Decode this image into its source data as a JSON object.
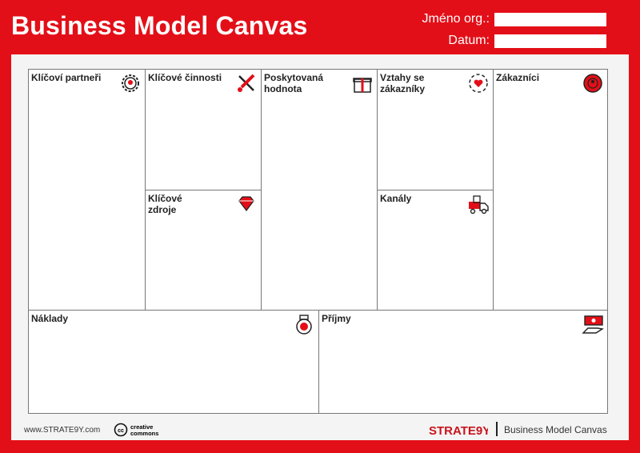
{
  "header": {
    "title": "Business Model Canvas",
    "org_label": "Jméno org.:",
    "date_label": "Datum:",
    "org_value": "",
    "date_value": ""
  },
  "blocks": {
    "partners": {
      "label": "Klíčoví partneři",
      "icon": "gear-partner-icon"
    },
    "activities": {
      "label": "Klíčové činnosti",
      "icon": "tools-icon"
    },
    "resources": {
      "label": "Klíčové zdroje",
      "icon": "diamond-icon"
    },
    "value": {
      "label": "Poskytovaná hodnota",
      "icon": "gift-icon"
    },
    "relationships": {
      "label": "Vztahy se zákazníky",
      "icon": "heart-hands-icon"
    },
    "channels": {
      "label": "Kanály",
      "icon": "delivery-truck-icon"
    },
    "segments": {
      "label": "Zákazníci",
      "icon": "target-customer-icon"
    },
    "costs": {
      "label": "Náklady",
      "icon": "money-bag-icon"
    },
    "revenue": {
      "label": "Příjmy",
      "icon": "hand-cash-icon"
    }
  },
  "footer": {
    "website": "www.STRATE9Y.com",
    "license": "creative commons",
    "brand": "STRATE9Y",
    "caption": "Business Model Canvas"
  },
  "colors": {
    "accent": "#e30f18",
    "panel": "#f4f4f4"
  }
}
